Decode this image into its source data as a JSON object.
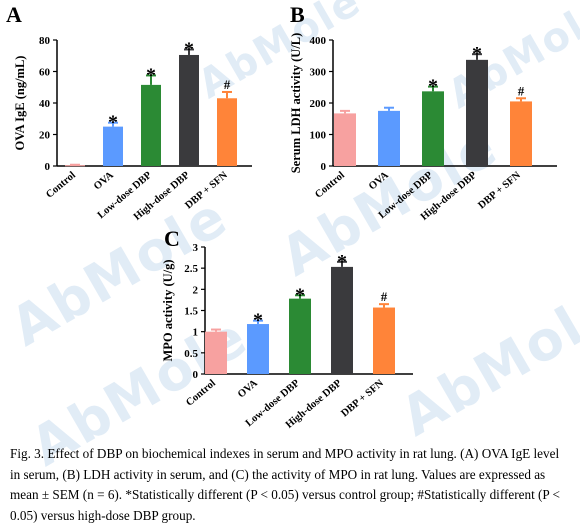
{
  "watermark": "AbMole",
  "caption": "Fig. 3. Effect of DBP on biochemical indexes in serum and MPO activity in rat lung. (A) OVA IgE level in serum, (B) LDH activity in serum, and (C) the activity of MPO in rat lung. Values are expressed as mean ± SEM (n = 6). *Statistically different (P < 0.05) versus control group; #Statistically different (P < 0.05) versus high-dose DBP group.",
  "colors": [
    "#f7a1a0",
    "#5b9aff",
    "#2b8a34",
    "#3a3a3d",
    "#ff8439"
  ],
  "chart_data": [
    {
      "panel": "A",
      "type": "bar",
      "ylabel": "OVA IgE (ng/mL)",
      "categories": [
        "Control",
        "OVA",
        "Low-dose DBP",
        "High-dose DBP",
        "DBP + SFN"
      ],
      "values": [
        0.5,
        25,
        51.5,
        70.5,
        43
      ],
      "errors": [
        0.3,
        2.5,
        6,
        3.5,
        4
      ],
      "markers": [
        "",
        "*",
        "*",
        "*",
        "#"
      ],
      "ylim": [
        0,
        80
      ],
      "yticks": [
        "0",
        "20",
        "40",
        "60",
        "80"
      ]
    },
    {
      "panel": "B",
      "type": "bar",
      "ylabel": "Serum LDH activity (U/L)",
      "categories": [
        "Control",
        "OVA",
        "Low-dose DBP",
        "High-dose DBP",
        "DBP + SFN"
      ],
      "values": [
        167,
        175,
        237,
        337,
        205
      ],
      "errors": [
        8,
        10,
        15,
        18,
        10
      ],
      "markers": [
        "",
        "",
        "*",
        "*",
        "#"
      ],
      "ylim": [
        0,
        400
      ],
      "yticks": [
        "0",
        "100",
        "200",
        "300",
        "400"
      ]
    },
    {
      "panel": "C",
      "type": "bar",
      "ylabel": "MPO activity (U/g)",
      "categories": [
        "Control",
        "OVA",
        "Low-dose DBP",
        "High-dose DBP",
        "DBP + SFN"
      ],
      "values": [
        1.0,
        1.18,
        1.78,
        2.53,
        1.57
      ],
      "errors": [
        0.05,
        0.08,
        0.08,
        0.12,
        0.08
      ],
      "markers": [
        "",
        "*",
        "*",
        "*",
        "#"
      ],
      "ylim": [
        0,
        3
      ],
      "yticks": [
        "0",
        "0.5",
        "1",
        "1.5",
        "2",
        "2.5",
        "3"
      ]
    }
  ]
}
